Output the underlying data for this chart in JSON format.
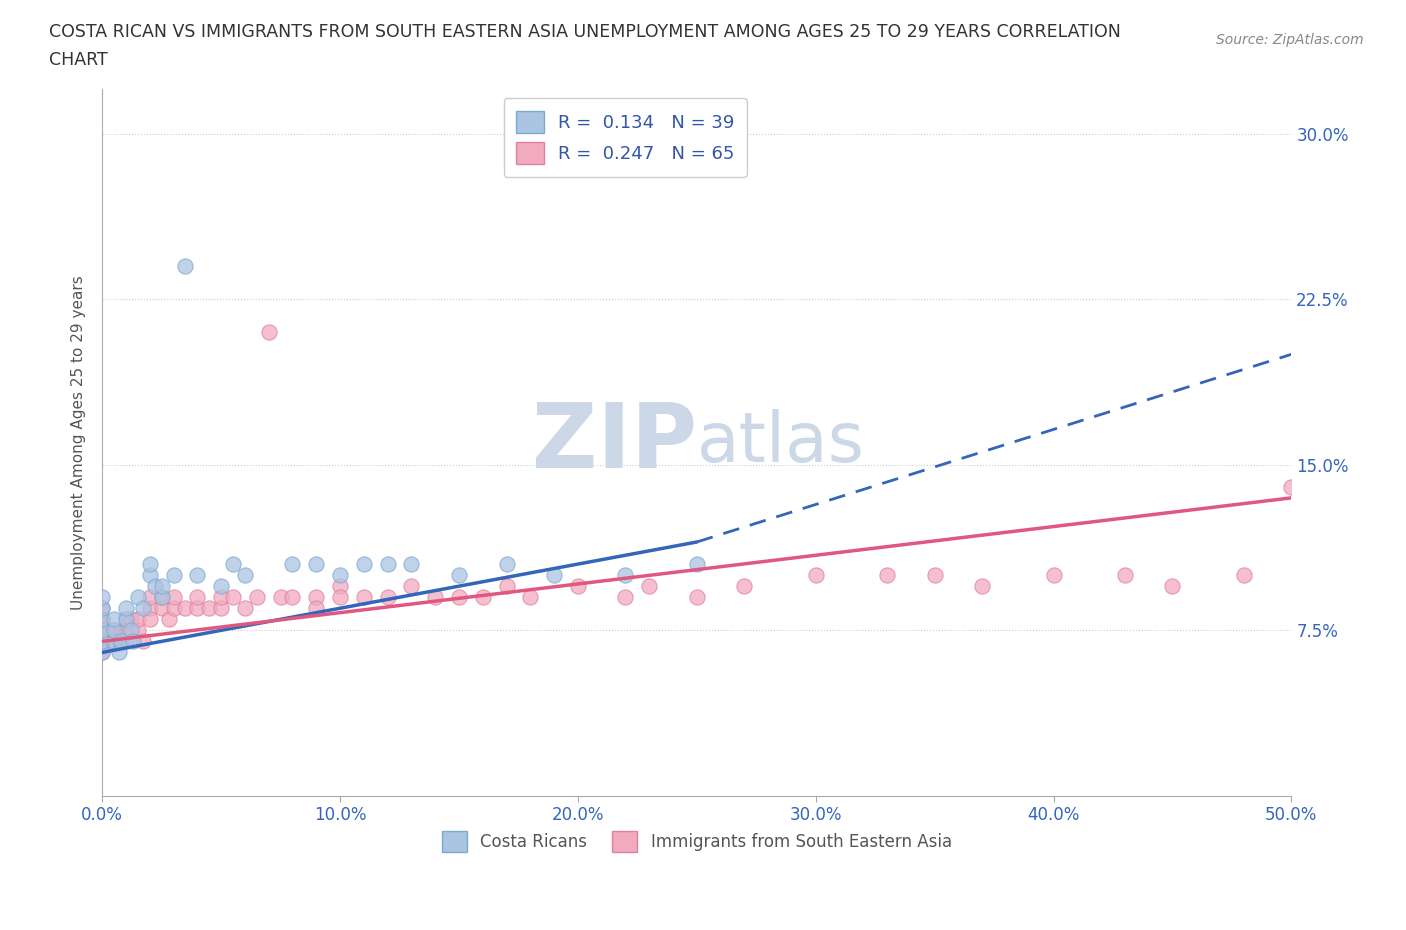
{
  "title_line1": "COSTA RICAN VS IMMIGRANTS FROM SOUTH EASTERN ASIA UNEMPLOYMENT AMONG AGES 25 TO 29 YEARS CORRELATION",
  "title_line2": "CHART",
  "source_text": "Source: ZipAtlas.com",
  "ylabel": "Unemployment Among Ages 25 to 29 years",
  "xlim": [
    0.0,
    0.5
  ],
  "ylim": [
    0.0,
    0.32
  ],
  "xticks": [
    0.0,
    0.1,
    0.2,
    0.3,
    0.4,
    0.5
  ],
  "xtick_labels": [
    "0.0%",
    "10.0%",
    "20.0%",
    "30.0%",
    "40.0%",
    "50.0%"
  ],
  "yticks": [
    0.075,
    0.15,
    0.225,
    0.3
  ],
  "ytick_labels": [
    "7.5%",
    "15.0%",
    "22.5%",
    "30.0%"
  ],
  "blue_color": "#aac4e2",
  "blue_edge": "#7aaad0",
  "pink_color": "#f2aabf",
  "pink_edge": "#e080a0",
  "trend_blue_solid": "#3366bb",
  "trend_pink": "#e05880",
  "axis_label_color": "#3366bb",
  "watermark_color": "#ccd8e8",
  "legend_R1": "0.134",
  "legend_N1": "39",
  "legend_R2": "0.247",
  "legend_N2": "65",
  "legend_text_color": "#3355aa",
  "blue_scatter_x": [
    0.0,
    0.0,
    0.0,
    0.0,
    0.0,
    0.0,
    0.005,
    0.005,
    0.005,
    0.007,
    0.008,
    0.01,
    0.01,
    0.012,
    0.013,
    0.015,
    0.017,
    0.02,
    0.02,
    0.022,
    0.025,
    0.025,
    0.03,
    0.035,
    0.04,
    0.05,
    0.055,
    0.06,
    0.08,
    0.09,
    0.1,
    0.11,
    0.12,
    0.13,
    0.15,
    0.17,
    0.19,
    0.22,
    0.25
  ],
  "blue_scatter_y": [
    0.065,
    0.07,
    0.075,
    0.08,
    0.085,
    0.09,
    0.07,
    0.075,
    0.08,
    0.065,
    0.07,
    0.08,
    0.085,
    0.075,
    0.07,
    0.09,
    0.085,
    0.1,
    0.105,
    0.095,
    0.09,
    0.095,
    0.1,
    0.24,
    0.1,
    0.095,
    0.105,
    0.1,
    0.105,
    0.105,
    0.1,
    0.105,
    0.105,
    0.105,
    0.1,
    0.105,
    0.1,
    0.1,
    0.105
  ],
  "pink_scatter_x": [
    0.0,
    0.0,
    0.0,
    0.0,
    0.0,
    0.0,
    0.0,
    0.0,
    0.005,
    0.005,
    0.007,
    0.008,
    0.01,
    0.01,
    0.01,
    0.012,
    0.015,
    0.015,
    0.017,
    0.02,
    0.02,
    0.02,
    0.025,
    0.025,
    0.028,
    0.03,
    0.03,
    0.035,
    0.04,
    0.04,
    0.045,
    0.05,
    0.05,
    0.055,
    0.06,
    0.065,
    0.07,
    0.075,
    0.08,
    0.09,
    0.09,
    0.1,
    0.1,
    0.11,
    0.12,
    0.13,
    0.14,
    0.15,
    0.16,
    0.17,
    0.18,
    0.2,
    0.22,
    0.23,
    0.25,
    0.27,
    0.3,
    0.33,
    0.35,
    0.37,
    0.4,
    0.43,
    0.45,
    0.48,
    0.5
  ],
  "pink_scatter_y": [
    0.065,
    0.07,
    0.07,
    0.075,
    0.075,
    0.08,
    0.08,
    0.085,
    0.07,
    0.075,
    0.07,
    0.075,
    0.07,
    0.075,
    0.08,
    0.08,
    0.075,
    0.08,
    0.07,
    0.085,
    0.08,
    0.09,
    0.085,
    0.09,
    0.08,
    0.085,
    0.09,
    0.085,
    0.085,
    0.09,
    0.085,
    0.085,
    0.09,
    0.09,
    0.085,
    0.09,
    0.21,
    0.09,
    0.09,
    0.09,
    0.085,
    0.095,
    0.09,
    0.09,
    0.09,
    0.095,
    0.09,
    0.09,
    0.09,
    0.095,
    0.09,
    0.095,
    0.09,
    0.095,
    0.09,
    0.095,
    0.1,
    0.1,
    0.1,
    0.095,
    0.1,
    0.1,
    0.095,
    0.1,
    0.14
  ],
  "blue_trend_x_start": 0.0,
  "blue_trend_x_solid_end": 0.25,
  "blue_trend_x_dash_end": 0.5,
  "blue_trend_y_start": 0.065,
  "blue_trend_y_solid_end": 0.115,
  "blue_trend_y_dash_end": 0.2,
  "pink_trend_x_start": 0.0,
  "pink_trend_x_end": 0.5,
  "pink_trend_y_start": 0.07,
  "pink_trend_y_end": 0.135
}
